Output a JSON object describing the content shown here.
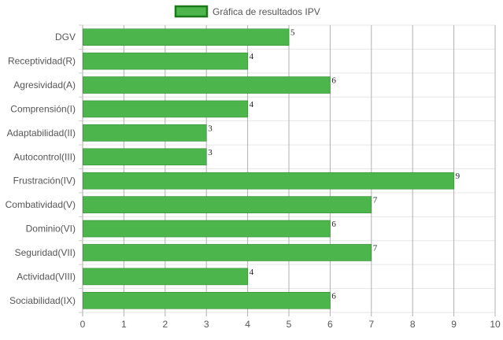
{
  "chart_data": {
    "type": "bar",
    "orientation": "horizontal",
    "categories": [
      "DGV",
      "Receptividad(R)",
      "Agresividad(A)",
      "Comprensión(I)",
      "Adaptabilidad(II)",
      "Autocontrol(III)",
      "Frustración(IV)",
      "Combatividad(V)",
      "Dominio(VI)",
      "Seguridad(VII)",
      "Actividad(VIII)",
      "Sociabilidad(IX)"
    ],
    "series": [
      {
        "name": "Gráfica de resultados IPV",
        "values": [
          5,
          4,
          6,
          4,
          3,
          3,
          9,
          7,
          6,
          7,
          4,
          6
        ],
        "color": "#4cb64c",
        "border_color": "#2e8b2e"
      }
    ],
    "xlim": [
      0,
      10
    ],
    "x_ticks": [
      "0",
      "1",
      "2",
      "3",
      "4",
      "5",
      "6",
      "7",
      "8",
      "9",
      "10"
    ],
    "legend_position": "top-center",
    "grid": true,
    "gridline_color": "#d6d6d6",
    "legend_box_color": "#4cb64c",
    "legend_border_color": "#1a7a1a",
    "title": "",
    "xlabel": "",
    "ylabel": ""
  }
}
